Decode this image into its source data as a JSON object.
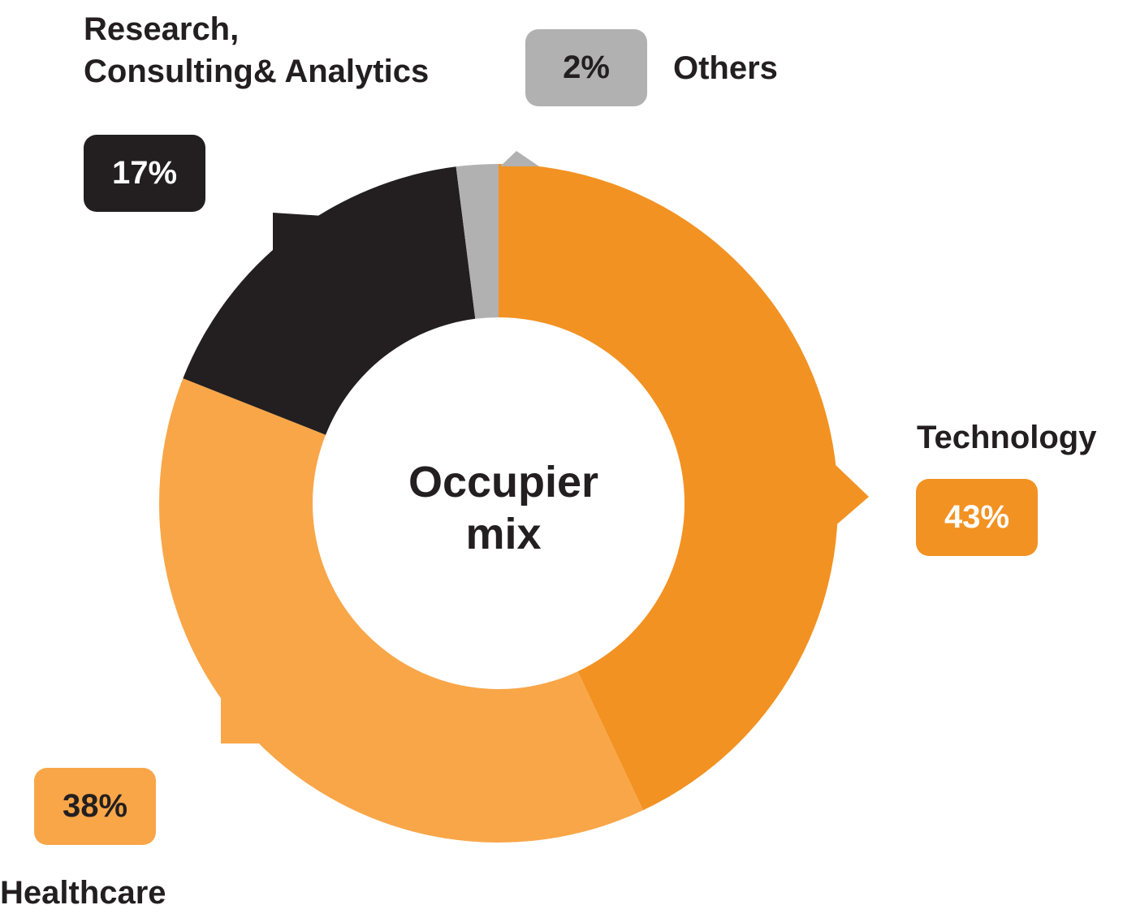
{
  "chart_data": {
    "type": "pie",
    "title": "Occupier mix",
    "title_lines": [
      "Occupier",
      "mix"
    ],
    "slices": [
      {
        "key": "technology",
        "name": "Technology",
        "value": 43,
        "value_label": "43%",
        "color": "#f29222",
        "label_color": "#ffffff"
      },
      {
        "key": "healthcare",
        "name": "Healthcare",
        "value": 38,
        "value_label": "38%",
        "color": "#f9a648",
        "label_color": "#231f20"
      },
      {
        "key": "research",
        "name": "Research, Consulting& Analytics",
        "name_lines": [
          "Research,",
          "Consulting& Analytics"
        ],
        "value": 17,
        "value_label": "17%",
        "color": "#231f20",
        "label_color": "#ffffff"
      },
      {
        "key": "others",
        "name": "Others",
        "value": 2,
        "value_label": "2%",
        "color": "#b1b1b1",
        "label_color": "#231f20"
      }
    ]
  }
}
